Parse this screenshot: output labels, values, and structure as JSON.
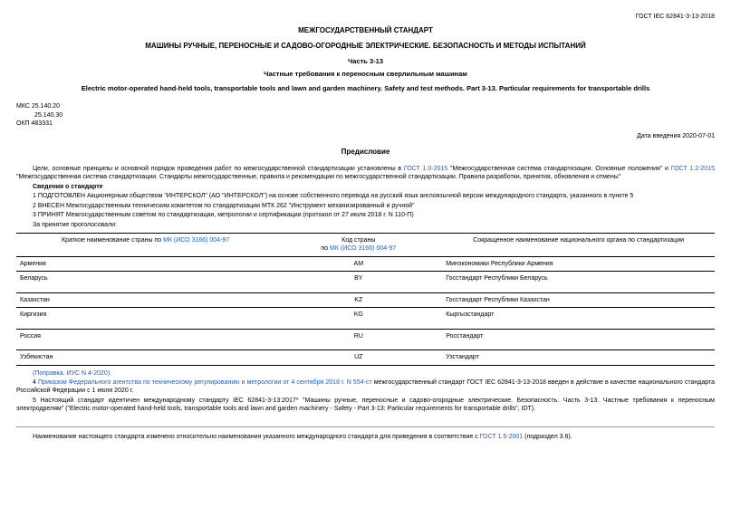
{
  "header_right": "ГОСТ IEC 62841-3-13-2018",
  "title_main": "МЕЖГОСУДАРСТВЕННЫЙ СТАНДАРТ",
  "title_sub": "МАШИНЫ РУЧНЫЕ, ПЕРЕНОСНЫЕ И САДОВО-ОГОРОДНЫЕ ЭЛЕКТРИЧЕСКИЕ. БЕЗОПАСНОСТЬ И МЕТОДЫ ИСПЫТАНИЙ",
  "title_part": "Часть 3-13",
  "title_req": "Частные требования к переносным сверлильным машинам",
  "title_en": "Electric motor-operated hand-held tools, transportable tools and lawn and garden machinery. Safety and test methods. Part 3-13. Particular requirements for transportable drills",
  "codes": {
    "mks1": "МКС 25.140.20",
    "mks2": "25.140.30",
    "okp": "ОКП 483331"
  },
  "date_intro": "Дата введения 2020-07-01",
  "preface_h": "Предисловие",
  "preface_p1_a": "Цели, основные принципы и основной порядок проведения работ по межгосударственной стандартизации установлены в ",
  "preface_p1_link1": "ГОСТ 1.0-2015",
  "preface_p1_b": " \"Межгосударственная система стандартизации. Основные положения\" и ",
  "preface_p1_link2": "ГОСТ 1.2-2015",
  "preface_p1_c": " \"Межгосударственная система стандартизации. Стандарты межгосударственные, правила и рекомендации по межгосударственной стандартизации. Правила разработки, принятия, обновления и отмены\"",
  "info_h": "Сведения о стандарте",
  "info_1": "1 ПОДГОТОВЛЕН Акционерным обществом \"ИНТЕРСКОЛ\" (АО \"ИНТЕРСКОЛ\") на основе собственного перевода на русский язык англоязычной версии международного стандарта, указанного в пункте 5",
  "info_2": "2 ВНЕСЕН Межгосударственным техническим комитетом по стандартизации МТК 262 \"Инструмент механизированный и ручной\"",
  "info_3": "3 ПРИНЯТ Межгосударственным советом по стандартизации, метрологии и сертификации (протокол от 27 июля 2018 г. N 110-П)",
  "info_vote": "За принятие проголосовали:",
  "table": {
    "col1_h_a": "Краткое наименование страны по ",
    "col1_h_link": "МК (ИСО 3166) 004-97",
    "col2_h_a": "Код страны",
    "col2_h_b": "по ",
    "col2_h_link": "МК (ИСО 3166) 004-97",
    "col3_h": "Сокращенное наименование национального органа по стандартизации",
    "rows": [
      {
        "c1": "Армения",
        "c2": "AM",
        "c3": "Минэкономики Республики Армения"
      },
      {
        "c1": "Беларусь",
        "c2": "BY",
        "c3": "Госстандарт Республики Беларусь"
      },
      {
        "c1": "Казахстан",
        "c2": "KZ",
        "c3": "Госстандарт Республики Казахстан"
      },
      {
        "c1": "Киргизия",
        "c2": "KG",
        "c3": "Кыргызстандарт"
      },
      {
        "c1": "Россия",
        "c2": "RU",
        "c3": "Росстандарт"
      },
      {
        "c1": "Узбекистан",
        "c2": "UZ",
        "c3": "Узстандарт"
      }
    ],
    "col_widths": [
      "37%",
      "24%",
      "39%"
    ]
  },
  "amend": "(Поправка. ИУС N 4-2020).",
  "p4_a": "4 ",
  "p4_link": "Приказом Федерального агентства по техническому регулированию и метрологии от 4 сентября 2018 г. N 554-ст",
  "p4_b": " межгосударственный стандарт ГОСТ IEC 62841-3-13-2018 введен в действие в качестве национального стандарта Российской Федерации с 1 июля 2020 г.",
  "p5": "5 Настоящий стандарт идентичен международному стандарту IEC 62841-3-13:2017* \"Машины ручные, переносные и садово-огородные электрические. Безопасность. Часть 3-13. Частные требования к переносным электродрелям\" (\"Electric motor-operated hand-held tools, transportable tools and lawn and garden machinery - Safety - Part 3-13: Particular requirements for transportable drills\", IDT).",
  "footer_a": "Наименование настоящего стандарта изменено относительно наименования указанного международного стандарта для приведения в соответствие с ",
  "footer_link": "ГОСТ 1.5-2001",
  "footer_b": " (подраздел 3.6).",
  "colors": {
    "link": "#1a5fbf",
    "text": "#000000",
    "bg": "#ffffff"
  }
}
